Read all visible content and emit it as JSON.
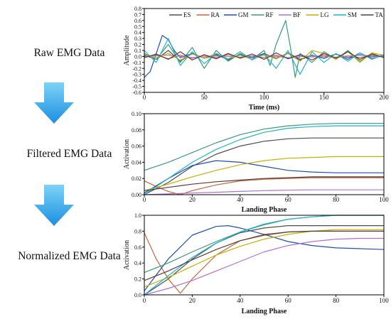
{
  "steps": {
    "raw": "Raw EMG Data",
    "filtered": "Filtered EMG Data",
    "normalized": "Normalized EMG Data"
  },
  "colors": {
    "ES": "#4d4d4d",
    "RA": "#c8643c",
    "GM": "#1f4fb4",
    "RF": "#3a9a7a",
    "BF": "#b070d0",
    "LG": "#c8b000",
    "SM": "#1eb4d2",
    "TA": "#5a3c3c",
    "arrow_top": "#7dd3f7",
    "arrow_bottom": "#1a8fe0"
  },
  "chart_data": [
    {
      "type": "line",
      "id": "raw",
      "legend": [
        "ES",
        "RA",
        "GM",
        "RF",
        "BF",
        "LG",
        "SM",
        "TA"
      ],
      "legend_position": "top",
      "xlabel": "Time (ms)",
      "ylabel": "Amplitude",
      "xlim": [
        0,
        200
      ],
      "ylim": [
        -0.6,
        0.8
      ],
      "xticks": [
        "0",
        "50",
        "100",
        "150",
        "200"
      ],
      "yticks": [
        "-0.6",
        "-0.5",
        "-0.4",
        "-0.3",
        "-0.2",
        "-0.1",
        "0.0",
        "0.1",
        "0.2",
        "0.3",
        "0.4",
        "0.5",
        "0.6",
        "0.7",
        "0.8"
      ],
      "grid": false,
      "series": [
        {
          "name": "ES",
          "x": [
            0,
            10,
            20,
            30,
            40,
            50,
            60,
            70,
            80,
            90,
            100,
            110,
            120,
            130,
            140,
            150,
            160,
            170,
            180,
            190,
            200
          ],
          "values": [
            0.02,
            -0.05,
            0.1,
            -0.08,
            0.05,
            -0.03,
            0.04,
            -0.06,
            0.03,
            -0.02,
            0.05,
            -0.04,
            0.06,
            -0.05,
            0.02,
            -0.03,
            0.04,
            -0.02,
            0.03,
            -0.01,
            0.02
          ]
        },
        {
          "name": "RA",
          "x": [
            0,
            10,
            20,
            30,
            40,
            50,
            60,
            70,
            80,
            90,
            100,
            110,
            120,
            130,
            140,
            150,
            160,
            170,
            180,
            190,
            200
          ],
          "values": [
            -0.02,
            0.03,
            -0.04,
            0.02,
            -0.03,
            0.02,
            -0.02,
            0.03,
            -0.02,
            0.01,
            -0.02,
            0.02,
            -0.03,
            0.02,
            -0.01,
            0.02,
            -0.02,
            0.01,
            -0.02,
            0.02,
            -0.01
          ]
        },
        {
          "name": "GM",
          "x": [
            0,
            5,
            10,
            15,
            20,
            25,
            30,
            40,
            50,
            60,
            70,
            80,
            90,
            100,
            110,
            120,
            130,
            140,
            150,
            160,
            170,
            180,
            190,
            200
          ],
          "values": [
            -0.35,
            -0.25,
            0.05,
            0.35,
            0.28,
            0.1,
            -0.02,
            0.05,
            -0.03,
            0.02,
            -0.04,
            0.03,
            -0.02,
            0.04,
            -0.03,
            0.05,
            -0.06,
            0.02,
            -0.03,
            0.04,
            -0.05,
            0.06,
            -0.04,
            0.02
          ]
        },
        {
          "name": "RF",
          "x": [
            0,
            10,
            20,
            30,
            40,
            50,
            60,
            70,
            80,
            90,
            100,
            105,
            110,
            115,
            118,
            122,
            126,
            130,
            140,
            150,
            160,
            170,
            180,
            190,
            200
          ],
          "values": [
            0.05,
            -0.05,
            0.2,
            -0.1,
            0.15,
            -0.2,
            0.1,
            -0.08,
            0.05,
            -0.05,
            0.1,
            -0.15,
            0.2,
            0.45,
            0.6,
            0.15,
            -0.35,
            0.05,
            -0.1,
            0.08,
            -0.05,
            0.1,
            -0.08,
            0.05,
            -0.02
          ]
        },
        {
          "name": "BF",
          "x": [
            0,
            20,
            40,
            60,
            80,
            100,
            120,
            140,
            160,
            180,
            200
          ],
          "values": [
            0.0,
            0.02,
            -0.02,
            0.01,
            -0.01,
            0.02,
            -0.02,
            0.01,
            -0.01,
            0.02,
            0.0
          ]
        },
        {
          "name": "LG",
          "x": [
            0,
            10,
            20,
            30,
            40,
            50,
            60,
            70,
            80,
            90,
            100,
            110,
            120,
            130,
            140,
            150,
            160,
            170,
            180,
            190,
            200
          ],
          "values": [
            0.03,
            -0.02,
            0.05,
            -0.06,
            0.04,
            -0.03,
            0.05,
            -0.04,
            0.02,
            -0.05,
            0.03,
            -0.04,
            0.05,
            -0.08,
            0.1,
            0.05,
            -0.05,
            0.08,
            -0.1,
            0.06,
            0.02
          ]
        },
        {
          "name": "SM",
          "x": [
            0,
            10,
            20,
            30,
            40,
            50,
            60,
            70,
            80,
            90,
            100,
            110,
            120,
            130,
            140,
            150,
            160,
            170,
            180,
            190,
            200
          ],
          "values": [
            0.1,
            -0.1,
            0.3,
            -0.15,
            0.08,
            -0.12,
            0.05,
            -0.05,
            0.08,
            -0.06,
            0.04,
            -0.2,
            0.1,
            -0.3,
            0.08,
            -0.1,
            0.05,
            -0.08,
            0.06,
            -0.05,
            0.03
          ]
        },
        {
          "name": "TA",
          "x": [
            0,
            10,
            20,
            30,
            40,
            50,
            60,
            70,
            80,
            90,
            100,
            110,
            120,
            130,
            140,
            150,
            160,
            170,
            180,
            190,
            200
          ],
          "values": [
            -0.02,
            0.04,
            -0.05,
            0.08,
            -0.06,
            0.03,
            -0.04,
            0.05,
            -0.03,
            0.04,
            -0.05,
            0.06,
            -0.04,
            0.03,
            -0.06,
            0.05,
            -0.03,
            0.08,
            -0.05,
            0.04,
            -0.02
          ]
        }
      ]
    },
    {
      "type": "line",
      "id": "filtered",
      "xlabel": "Landing Phase",
      "ylabel": "Activation",
      "xlim": [
        0,
        100
      ],
      "ylim": [
        0,
        0.1
      ],
      "xticks": [
        "0",
        "20",
        "40",
        "60",
        "80",
        "100"
      ],
      "yticks": [
        "0.00",
        "0.02",
        "0.04",
        "0.06",
        "0.08",
        "0.10"
      ],
      "grid": false,
      "series": [
        {
          "name": "ES",
          "x": [
            0,
            10,
            20,
            30,
            40,
            50,
            60,
            70,
            80,
            90,
            100
          ],
          "values": [
            0.0,
            0.015,
            0.035,
            0.05,
            0.06,
            0.066,
            0.069,
            0.07,
            0.07,
            0.07,
            0.07
          ]
        },
        {
          "name": "RA",
          "x": [
            0,
            5,
            10,
            15,
            20,
            30,
            40,
            50,
            60,
            70,
            80,
            90,
            100
          ],
          "values": [
            0.017,
            0.01,
            0.004,
            0.0,
            0.005,
            0.012,
            0.017,
            0.019,
            0.02,
            0.021,
            0.021,
            0.021,
            0.021
          ]
        },
        {
          "name": "GM",
          "x": [
            0,
            10,
            20,
            30,
            40,
            50,
            60,
            70,
            80,
            90,
            100
          ],
          "values": [
            0.002,
            0.02,
            0.036,
            0.042,
            0.04,
            0.035,
            0.03,
            0.028,
            0.027,
            0.027,
            0.027
          ]
        },
        {
          "name": "RF",
          "x": [
            0,
            10,
            20,
            30,
            40,
            50,
            60,
            70,
            80,
            90,
            100
          ],
          "values": [
            0.03,
            0.04,
            0.052,
            0.064,
            0.074,
            0.081,
            0.085,
            0.087,
            0.088,
            0.088,
            0.088
          ]
        },
        {
          "name": "BF",
          "x": [
            0,
            10,
            20,
            30,
            40,
            50,
            60,
            70,
            80,
            90,
            100
          ],
          "values": [
            0.0,
            0.001,
            0.002,
            0.003,
            0.004,
            0.005,
            0.0055,
            0.006,
            0.006,
            0.006,
            0.006
          ]
        },
        {
          "name": "LG",
          "x": [
            0,
            10,
            20,
            30,
            40,
            50,
            60,
            70,
            80,
            90,
            100
          ],
          "values": [
            0.005,
            0.013,
            0.022,
            0.03,
            0.037,
            0.042,
            0.045,
            0.046,
            0.047,
            0.047,
            0.047
          ]
        },
        {
          "name": "SM",
          "x": [
            0,
            10,
            20,
            30,
            40,
            50,
            60,
            70,
            80,
            90,
            100
          ],
          "values": [
            0.0,
            0.02,
            0.04,
            0.056,
            0.068,
            0.077,
            0.082,
            0.084,
            0.085,
            0.085,
            0.085
          ]
        },
        {
          "name": "TA",
          "x": [
            0,
            10,
            20,
            30,
            40,
            50,
            60,
            70,
            80,
            90,
            100
          ],
          "values": [
            0.005,
            0.009,
            0.013,
            0.016,
            0.018,
            0.02,
            0.021,
            0.022,
            0.022,
            0.022,
            0.022
          ]
        }
      ]
    },
    {
      "type": "line",
      "id": "normalized",
      "xlabel": "Landing Phase",
      "ylabel": "Activation",
      "xlim": [
        0,
        100
      ],
      "ylim": [
        0,
        1.0
      ],
      "xticks": [
        "0",
        "20",
        "40",
        "60",
        "80",
        "100"
      ],
      "yticks": [
        "0.0",
        "0.2",
        "0.4",
        "0.6",
        "0.8",
        "1.0"
      ],
      "grid": false,
      "series": [
        {
          "name": "ES",
          "x": [
            0,
            10,
            20,
            30,
            40,
            50,
            60,
            70,
            80,
            90,
            100
          ],
          "values": [
            0.0,
            0.2,
            0.45,
            0.65,
            0.78,
            0.84,
            0.87,
            0.87,
            0.87,
            0.87,
            0.87
          ]
        },
        {
          "name": "RA",
          "x": [
            0,
            5,
            10,
            15,
            20,
            30,
            40,
            50,
            60,
            70,
            80,
            90,
            100
          ],
          "values": [
            0.78,
            0.45,
            0.2,
            0.02,
            0.2,
            0.5,
            0.68,
            0.76,
            0.79,
            0.8,
            0.8,
            0.8,
            0.8
          ]
        },
        {
          "name": "GM",
          "x": [
            0,
            10,
            20,
            30,
            35,
            40,
            50,
            60,
            70,
            80,
            90,
            100
          ],
          "values": [
            0.05,
            0.45,
            0.75,
            0.86,
            0.87,
            0.84,
            0.76,
            0.67,
            0.62,
            0.59,
            0.58,
            0.57
          ]
        },
        {
          "name": "RF",
          "x": [
            0,
            10,
            20,
            30,
            40,
            50,
            60,
            70,
            80,
            90,
            100
          ],
          "values": [
            0.28,
            0.4,
            0.54,
            0.67,
            0.79,
            0.88,
            0.95,
            0.98,
            1.0,
            1.0,
            1.0
          ]
        },
        {
          "name": "BF",
          "x": [
            0,
            10,
            20,
            30,
            40,
            50,
            60,
            70,
            80,
            90,
            100
          ],
          "values": [
            0.0,
            0.08,
            0.18,
            0.3,
            0.42,
            0.54,
            0.62,
            0.67,
            0.7,
            0.71,
            0.71
          ]
        },
        {
          "name": "LG",
          "x": [
            0,
            10,
            20,
            30,
            40,
            50,
            60,
            70,
            80,
            90,
            100
          ],
          "values": [
            0.1,
            0.22,
            0.36,
            0.5,
            0.61,
            0.7,
            0.76,
            0.8,
            0.82,
            0.82,
            0.82
          ]
        },
        {
          "name": "SM",
          "x": [
            0,
            10,
            20,
            30,
            40,
            50,
            60,
            70,
            80,
            90,
            100
          ],
          "values": [
            0.0,
            0.24,
            0.47,
            0.65,
            0.79,
            0.89,
            0.95,
            0.98,
            1.0,
            1.0,
            1.0
          ]
        },
        {
          "name": "TA",
          "x": [
            0,
            10,
            20,
            30,
            40,
            50,
            60,
            70,
            80,
            90,
            100
          ],
          "values": [
            0.18,
            0.3,
            0.44,
            0.57,
            0.68,
            0.75,
            0.79,
            0.8,
            0.8,
            0.8,
            0.8
          ]
        }
      ]
    }
  ]
}
